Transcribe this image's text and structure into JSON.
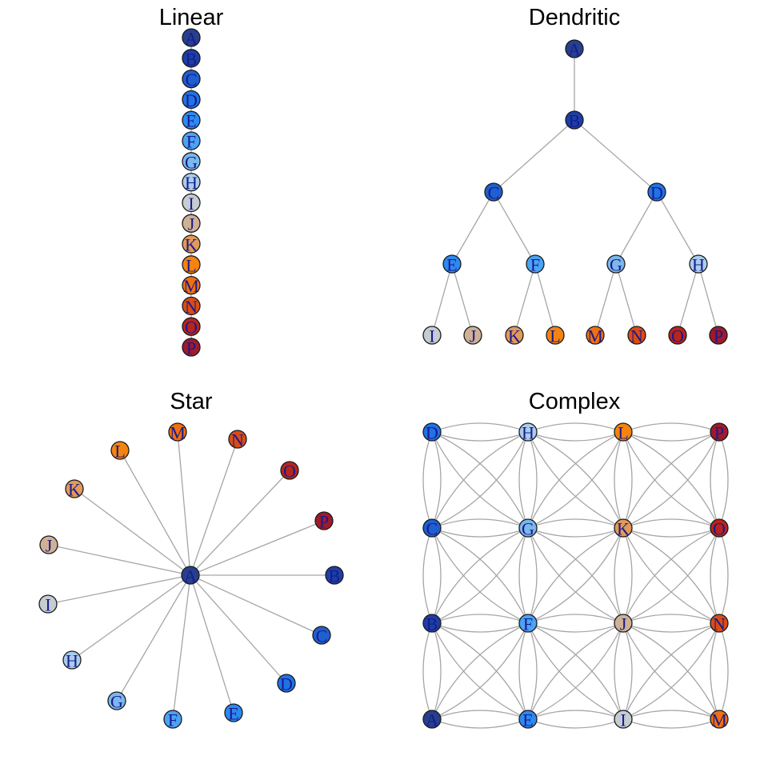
{
  "colors": {
    "A": "#26408f",
    "B": "#1c3fa6",
    "C": "#1f5fcf",
    "D": "#1f73e6",
    "E": "#2c8af2",
    "F": "#4aa3f5",
    "G": "#7ab8ee",
    "H": "#a9cdee",
    "I": "#c5ccd2",
    "J": "#cfb195",
    "K": "#e29a5a",
    "L": "#f5830f",
    "M": "#f0700f",
    "N": "#db4c14",
    "O": "#b8241c",
    "P": "#9e1a2c"
  },
  "panels": [
    {
      "id": "linear",
      "title": "Linear",
      "nodes": [
        "A",
        "B",
        "C",
        "D",
        "E",
        "F",
        "G",
        "H",
        "I",
        "J",
        "K",
        "L",
        "M",
        "N",
        "O",
        "P"
      ],
      "edges": [
        [
          "A",
          "B"
        ],
        [
          "B",
          "C"
        ],
        [
          "C",
          "D"
        ],
        [
          "D",
          "E"
        ],
        [
          "E",
          "F"
        ],
        [
          "F",
          "G"
        ],
        [
          "G",
          "H"
        ],
        [
          "H",
          "I"
        ],
        [
          "I",
          "J"
        ],
        [
          "J",
          "K"
        ],
        [
          "K",
          "L"
        ],
        [
          "L",
          "M"
        ],
        [
          "M",
          "N"
        ],
        [
          "N",
          "O"
        ],
        [
          "O",
          "P"
        ]
      ]
    },
    {
      "id": "dendritic",
      "title": "Dendritic",
      "nodes": [
        "A",
        "B",
        "C",
        "D",
        "E",
        "F",
        "G",
        "H",
        "I",
        "J",
        "K",
        "L",
        "M",
        "N",
        "O",
        "P"
      ],
      "edges": [
        [
          "A",
          "B"
        ],
        [
          "B",
          "C"
        ],
        [
          "B",
          "D"
        ],
        [
          "C",
          "E"
        ],
        [
          "C",
          "F"
        ],
        [
          "D",
          "G"
        ],
        [
          "D",
          "H"
        ],
        [
          "E",
          "I"
        ],
        [
          "E",
          "J"
        ],
        [
          "F",
          "K"
        ],
        [
          "F",
          "L"
        ],
        [
          "G",
          "M"
        ],
        [
          "G",
          "N"
        ],
        [
          "H",
          "O"
        ],
        [
          "H",
          "P"
        ]
      ]
    },
    {
      "id": "star",
      "title": "Star",
      "nodes": [
        "A",
        "B",
        "C",
        "D",
        "E",
        "F",
        "G",
        "H",
        "I",
        "J",
        "K",
        "L",
        "M",
        "N",
        "O",
        "P"
      ],
      "edges": [
        [
          "A",
          "B"
        ],
        [
          "A",
          "C"
        ],
        [
          "A",
          "D"
        ],
        [
          "A",
          "E"
        ],
        [
          "A",
          "F"
        ],
        [
          "A",
          "G"
        ],
        [
          "A",
          "H"
        ],
        [
          "A",
          "I"
        ],
        [
          "A",
          "J"
        ],
        [
          "A",
          "K"
        ],
        [
          "A",
          "L"
        ],
        [
          "A",
          "M"
        ],
        [
          "A",
          "N"
        ],
        [
          "A",
          "O"
        ],
        [
          "A",
          "P"
        ]
      ]
    },
    {
      "id": "complex",
      "title": "Complex",
      "nodes": [
        "A",
        "B",
        "C",
        "D",
        "E",
        "F",
        "G",
        "H",
        "I",
        "J",
        "K",
        "L",
        "M",
        "N",
        "O",
        "P"
      ],
      "grid": [
        [
          "D",
          "H",
          "L",
          "P"
        ],
        [
          "C",
          "G",
          "K",
          "O"
        ],
        [
          "B",
          "F",
          "J",
          "N"
        ],
        [
          "A",
          "E",
          "I",
          "M"
        ]
      ]
    }
  ]
}
